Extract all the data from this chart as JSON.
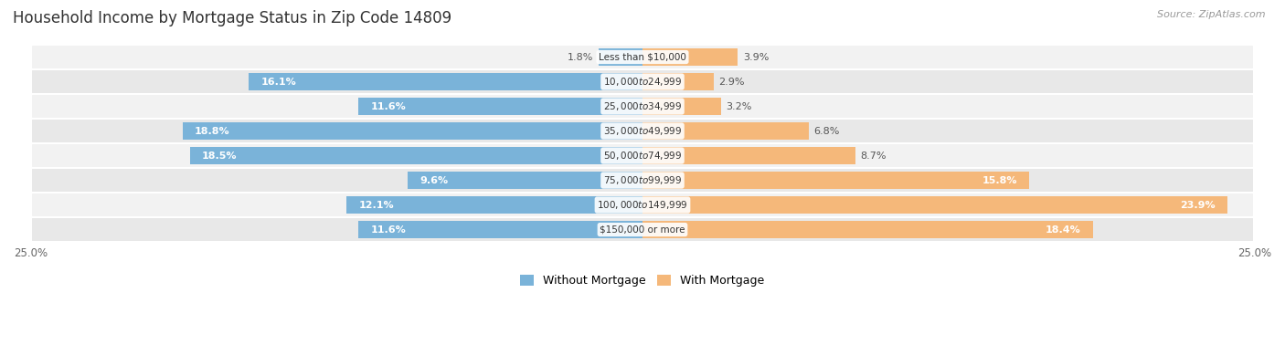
{
  "title": "Household Income by Mortgage Status in Zip Code 14809",
  "source": "Source: ZipAtlas.com",
  "categories": [
    "Less than $10,000",
    "$10,000 to $24,999",
    "$25,000 to $34,999",
    "$35,000 to $49,999",
    "$50,000 to $74,999",
    "$75,000 to $99,999",
    "$100,000 to $149,999",
    "$150,000 or more"
  ],
  "without_mortgage": [
    1.8,
    16.1,
    11.6,
    18.8,
    18.5,
    9.6,
    12.1,
    11.6
  ],
  "with_mortgage": [
    3.9,
    2.9,
    3.2,
    6.8,
    8.7,
    15.8,
    23.9,
    18.4
  ],
  "color_without": "#7ab3d9",
  "color_with": "#f5b87a",
  "xlim": 25.0,
  "title_fontsize": 12,
  "label_fontsize": 8,
  "tick_fontsize": 8.5,
  "legend_fontsize": 9,
  "source_fontsize": 8,
  "row_colors": [
    "#f2f2f2",
    "#e8e8e8"
  ]
}
